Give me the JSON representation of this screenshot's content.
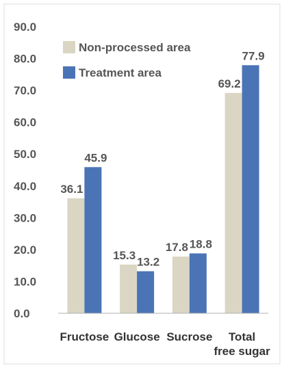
{
  "chart_data": {
    "type": "bar",
    "categories": [
      "Fructose",
      "Glucose",
      "Sucrose",
      "Total free sugar"
    ],
    "category_lines": [
      [
        "Fructose"
      ],
      [
        "Glucose"
      ],
      [
        "Sucrose"
      ],
      [
        "Total",
        "free sugar"
      ]
    ],
    "series": [
      {
        "name": "Non-processed area",
        "values": [
          36.1,
          15.3,
          17.8,
          69.2
        ],
        "labels": [
          "36.1",
          "15.3",
          "17.8",
          "69.2"
        ],
        "color": "#dad6c3"
      },
      {
        "name": "Treatment area",
        "values": [
          45.9,
          13.2,
          18.8,
          77.9
        ],
        "labels": [
          "45.9",
          "13.2",
          "18.8",
          "77.9"
        ],
        "color": "#4a74b5"
      }
    ],
    "ylim": [
      0,
      90
    ],
    "yticks": [
      "0.0",
      "10.0",
      "20.0",
      "30.0",
      "40.0",
      "50.0",
      "60.0",
      "70.0",
      "80.0",
      "90.0"
    ],
    "legend_position": "top-left",
    "title": "",
    "xlabel": "",
    "ylabel": ""
  }
}
